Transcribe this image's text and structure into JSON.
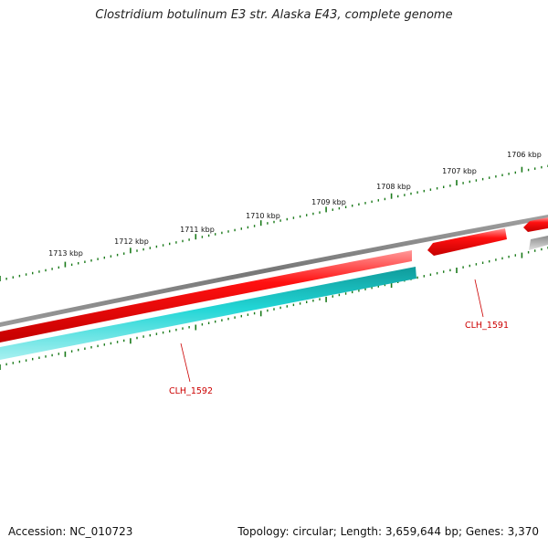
{
  "title": "Clostridium botulinum E3 str. Alaska E43, complete genome",
  "footer": {
    "accession": "Accession: NC_010723",
    "topology": "Topology: circular; Length: 3,659,644 bp; Genes: 3,370"
  },
  "scale_labels": [
    "1706 kbp",
    "1707 kbp",
    "1708 kbp",
    "1709 kbp",
    "1710 kbp",
    "1711 kbp",
    "1712 kbp",
    "1713 kbp"
  ],
  "gene_labels": [
    "CLH_1591",
    "CLH_1592"
  ],
  "colors": {
    "backbone": "#808080",
    "forward_gene": "#ff1a1a",
    "reverse_gene": "#1ec8c8",
    "ticks": "#1a7a1a",
    "label": "#cc0000"
  }
}
